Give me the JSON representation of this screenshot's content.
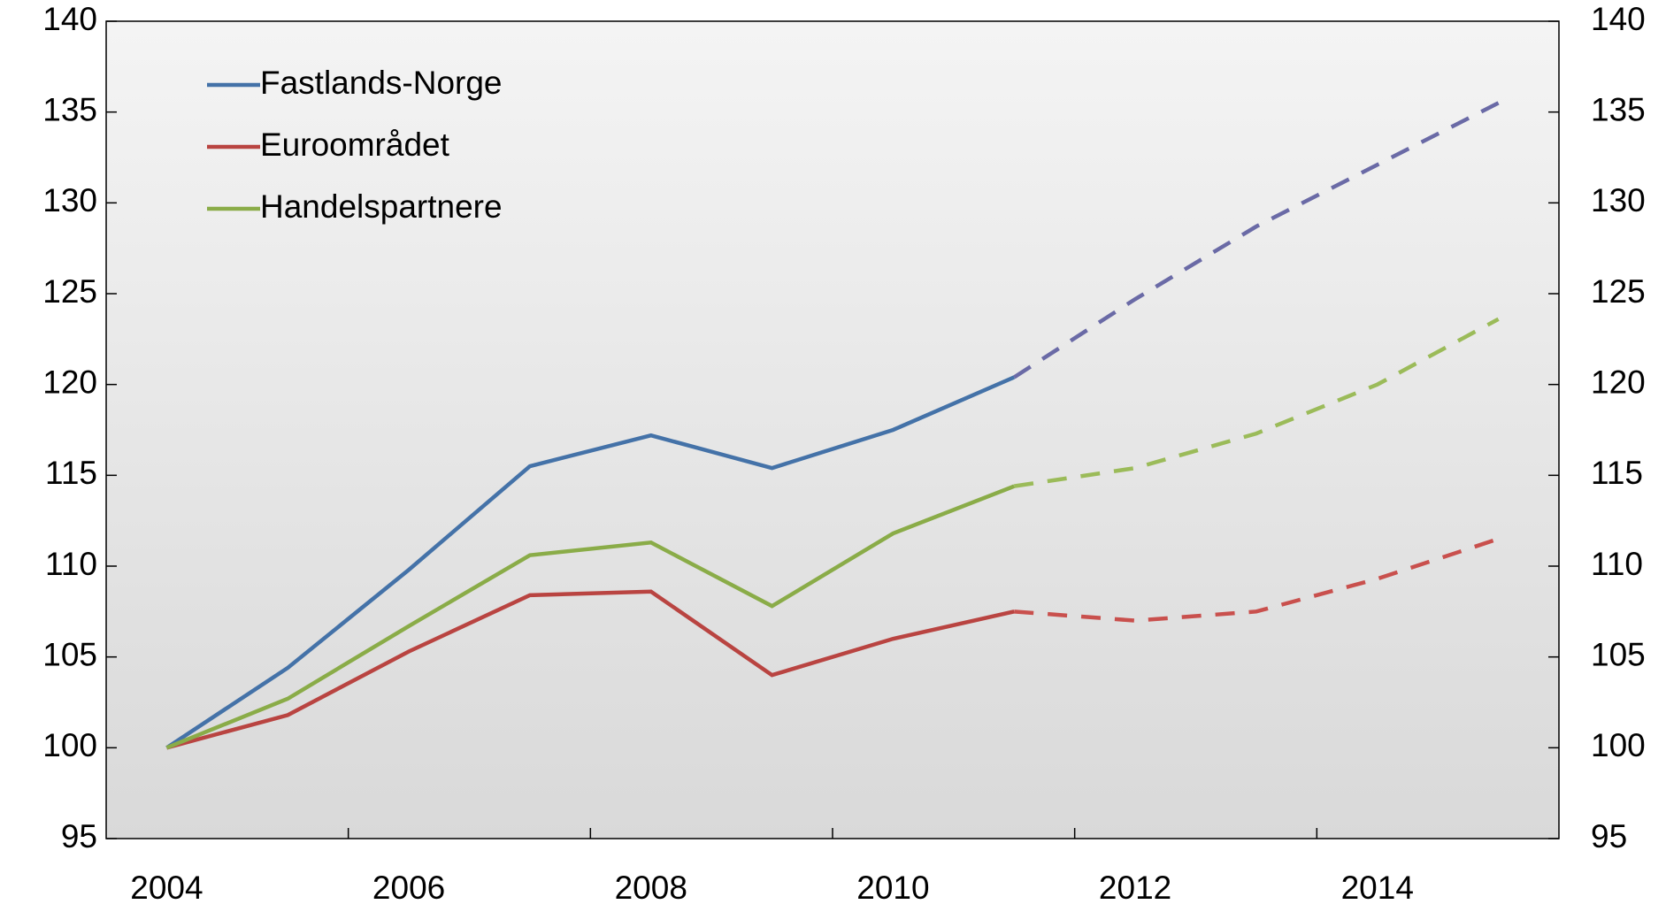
{
  "chart_data": {
    "type": "line",
    "categories": [
      "2004",
      null,
      "2006",
      null,
      "2008",
      null,
      "2010",
      null,
      "2012",
      null,
      "2014",
      null
    ],
    "series": [
      {
        "name": "Fastlands-Norge",
        "color": "#4472a8",
        "dash_color": "#6a6aa6",
        "values": [
          100,
          104.4,
          109.8,
          115.5,
          117.2,
          115.4,
          117.5,
          120.4,
          124.7,
          128.7,
          132.1,
          135.5
        ]
      },
      {
        "name": "Euroområdet",
        "color": "#b94441",
        "dash_color": "#c9504d",
        "values": [
          100,
          101.8,
          105.3,
          108.4,
          108.6,
          104.0,
          106.0,
          107.5,
          107.0,
          107.5,
          109.3,
          111.5
        ]
      },
      {
        "name": "Handelspartnere",
        "color": "#8aac48",
        "dash_color": "#9bbb59",
        "values": [
          100,
          102.7,
          106.7,
          110.6,
          111.3,
          107.8,
          111.8,
          114.4,
          115.4,
          117.3,
          120.0,
          123.6
        ]
      }
    ],
    "dashed_from": 7,
    "ylim": [
      95,
      140
    ],
    "yticks": [
      95,
      100,
      105,
      110,
      115,
      120,
      125,
      130,
      135,
      140
    ],
    "y2lim": [
      95,
      140
    ],
    "y2ticks": [
      95,
      100,
      105,
      110,
      115,
      120,
      125,
      130,
      135,
      140
    ],
    "legend": "top-left"
  }
}
